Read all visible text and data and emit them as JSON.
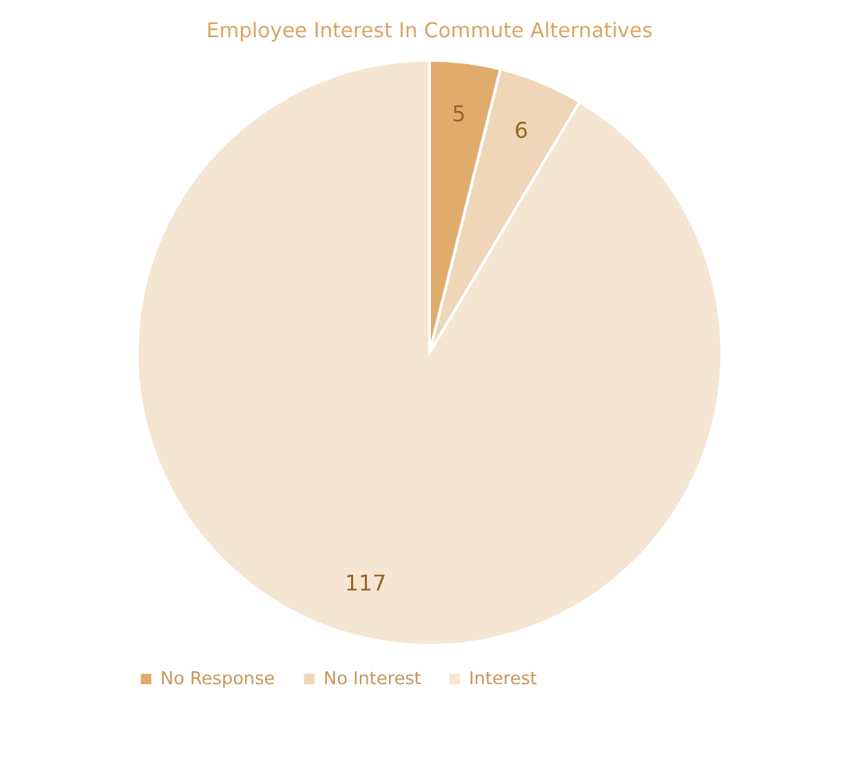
{
  "chart_data": {
    "type": "pie",
    "title": "Employee Interest In Commute Alternatives",
    "categories": [
      "No Response",
      "No Interest",
      "Interest"
    ],
    "values": [
      5,
      6,
      117
    ],
    "colors": [
      "#e0ac6c",
      "#f0d6b8",
      "#f5e5d3"
    ],
    "data_labels": true,
    "legend": "bottom"
  }
}
